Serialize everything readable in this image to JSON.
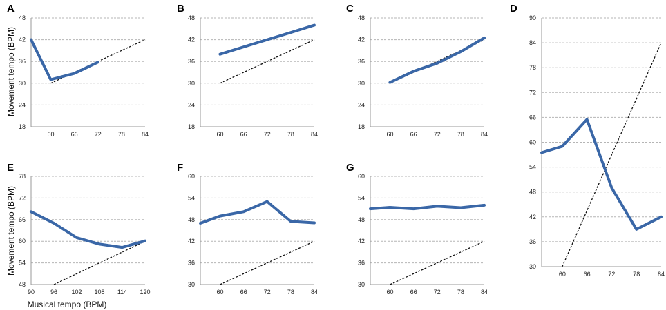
{
  "ylabel": "Movement tempo (BPM)",
  "xlabel": "Musical tempo (BPM)",
  "colors": {
    "series": "#3a67a7",
    "reference": "#111111",
    "grid": "#b5b5b5"
  },
  "chart_data": [
    {
      "panel": "A",
      "type": "line",
      "xlim": [
        55,
        84
      ],
      "ylim": [
        18,
        48
      ],
      "xticks": [
        60,
        66,
        72,
        78,
        84
      ],
      "yticks": [
        18,
        24,
        30,
        36,
        42,
        48
      ],
      "series": [
        {
          "name": "movement",
          "x": [
            55,
            60,
            66,
            72
          ],
          "y": [
            42,
            31,
            32.7,
            35.8
          ]
        }
      ],
      "reference": {
        "x": [
          60,
          84
        ],
        "y": [
          30,
          42
        ]
      }
    },
    {
      "panel": "B",
      "type": "line",
      "xlim": [
        55,
        84
      ],
      "ylim": [
        18,
        48
      ],
      "xticks": [
        60,
        66,
        72,
        78,
        84
      ],
      "yticks": [
        18,
        24,
        30,
        36,
        42,
        48
      ],
      "series": [
        {
          "name": "movement",
          "x": [
            60,
            66,
            72,
            78,
            84
          ],
          "y": [
            38,
            40,
            42,
            44,
            46
          ]
        }
      ],
      "reference": {
        "x": [
          60,
          84
        ],
        "y": [
          30,
          42
        ]
      }
    },
    {
      "panel": "C",
      "type": "line",
      "xlim": [
        55,
        84
      ],
      "ylim": [
        18,
        48
      ],
      "xticks": [
        60,
        66,
        72,
        78,
        84
      ],
      "yticks": [
        18,
        24,
        30,
        36,
        42,
        48
      ],
      "series": [
        {
          "name": "movement",
          "x": [
            60,
            66,
            72,
            78,
            84
          ],
          "y": [
            30.2,
            33.3,
            35.5,
            38.7,
            42.5
          ]
        }
      ],
      "reference": {
        "x": [
          60,
          84
        ],
        "y": [
          30,
          42
        ]
      }
    },
    {
      "panel": "D",
      "type": "line",
      "xlim": [
        55,
        84
      ],
      "ylim": [
        30,
        90
      ],
      "xticks": [
        60,
        66,
        72,
        78,
        84
      ],
      "yticks": [
        30,
        36,
        42,
        48,
        54,
        60,
        66,
        72,
        78,
        84,
        90
      ],
      "series": [
        {
          "name": "movement",
          "x": [
            55,
            60,
            66,
            72,
            78,
            84
          ],
          "y": [
            57.5,
            59,
            65.5,
            49,
            39,
            42
          ]
        }
      ],
      "reference": {
        "x": [
          60,
          84
        ],
        "y": [
          30,
          84
        ]
      }
    },
    {
      "panel": "E",
      "type": "line",
      "xlim": [
        90,
        120
      ],
      "ylim": [
        48,
        78
      ],
      "xticks": [
        90,
        96,
        102,
        108,
        114,
        120
      ],
      "yticks": [
        48,
        54,
        60,
        66,
        72,
        78
      ],
      "series": [
        {
          "name": "movement",
          "x": [
            90,
            96,
            102,
            108,
            114,
            120
          ],
          "y": [
            68.2,
            65,
            61,
            59.2,
            58.3,
            60.1
          ]
        }
      ],
      "reference": {
        "x": [
          96,
          120
        ],
        "y": [
          48,
          60
        ]
      }
    },
    {
      "panel": "F",
      "type": "line",
      "xlim": [
        55,
        84
      ],
      "ylim": [
        30,
        60
      ],
      "xticks": [
        60,
        66,
        72,
        78,
        84
      ],
      "yticks": [
        30,
        36,
        42,
        48,
        54,
        60
      ],
      "series": [
        {
          "name": "movement",
          "x": [
            55,
            60,
            66,
            72,
            78,
            84
          ],
          "y": [
            47,
            49,
            50.2,
            53,
            47.5,
            47.1
          ]
        }
      ],
      "reference": {
        "x": [
          60,
          84
        ],
        "y": [
          30,
          42
        ]
      }
    },
    {
      "panel": "G",
      "type": "line",
      "xlim": [
        55,
        84
      ],
      "ylim": [
        30,
        60
      ],
      "xticks": [
        60,
        66,
        72,
        78,
        84
      ],
      "yticks": [
        30,
        36,
        42,
        48,
        54,
        60
      ],
      "series": [
        {
          "name": "movement",
          "x": [
            55,
            60,
            66,
            72,
            78,
            84
          ],
          "y": [
            51,
            51.4,
            51,
            51.7,
            51.3,
            52
          ]
        }
      ],
      "reference": {
        "x": [
          60,
          84
        ],
        "y": [
          30,
          42
        ]
      }
    }
  ]
}
